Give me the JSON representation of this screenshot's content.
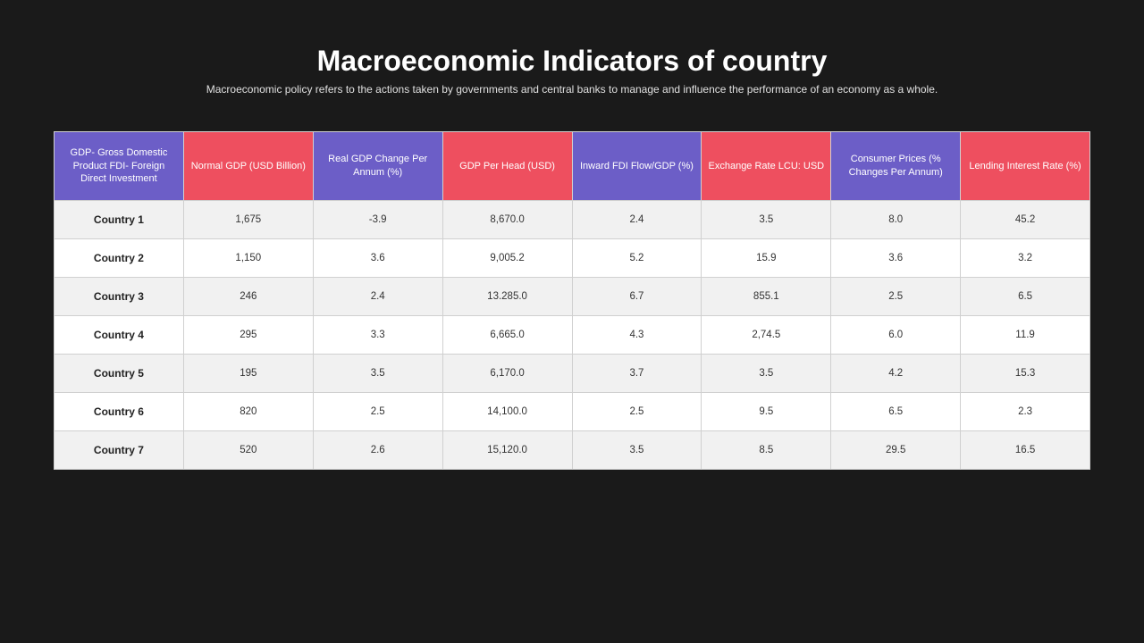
{
  "title": "Macroeconomic Indicators of country",
  "subtitle": "Macroeconomic policy refers to the actions taken by governments and central banks to manage and influence the performance of an economy as a whole.",
  "colors": {
    "background": "#1a1a1a",
    "header_purple": "#6c5ec7",
    "header_red": "#ee4f5f",
    "row_odd": "#f1f1f1",
    "row_even": "#ffffff",
    "text_light": "#ffffff",
    "text_dark": "#333333"
  },
  "table": {
    "columns": [
      {
        "label": "GDP- Gross Domestic Product FDI- Foreign Direct Investment",
        "color": "purple"
      },
      {
        "label": "Normal GDP (USD Billion)",
        "color": "red"
      },
      {
        "label": "Real GDP Change Per Annum (%)",
        "color": "purple"
      },
      {
        "label": "GDP Per Head (USD)",
        "color": "red"
      },
      {
        "label": "Inward FDI Flow/GDP (%)",
        "color": "purple"
      },
      {
        "label": "Exchange Rate LCU: USD",
        "color": "red"
      },
      {
        "label": "Consumer Prices (% Changes Per Annum)",
        "color": "purple"
      },
      {
        "label": "Lending Interest Rate (%)",
        "color": "red"
      }
    ],
    "rows": [
      {
        "label": "Country 1",
        "cells": [
          "1,675",
          "-3.9",
          "8,670.0",
          "2.4",
          "3.5",
          "8.0",
          "45.2"
        ]
      },
      {
        "label": "Country 2",
        "cells": [
          "1,150",
          "3.6",
          "9,005.2",
          "5.2",
          "15.9",
          "3.6",
          "3.2"
        ]
      },
      {
        "label": "Country 3",
        "cells": [
          "246",
          "2.4",
          "13.285.0",
          "6.7",
          "855.1",
          "2.5",
          "6.5"
        ]
      },
      {
        "label": "Country 4",
        "cells": [
          "295",
          "3.3",
          "6,665.0",
          "4.3",
          "2,74.5",
          "6.0",
          "11.9"
        ]
      },
      {
        "label": "Country 5",
        "cells": [
          "195",
          "3.5",
          "6,170.0",
          "3.7",
          "3.5",
          "4.2",
          "15.3"
        ]
      },
      {
        "label": "Country 6",
        "cells": [
          "820",
          "2.5",
          "14,100.0",
          "2.5",
          "9.5",
          "6.5",
          "2.3"
        ]
      },
      {
        "label": "Country 7",
        "cells": [
          "520",
          "2.6",
          "15,120.0",
          "3.5",
          "8.5",
          "29.5",
          "16.5"
        ]
      }
    ]
  }
}
